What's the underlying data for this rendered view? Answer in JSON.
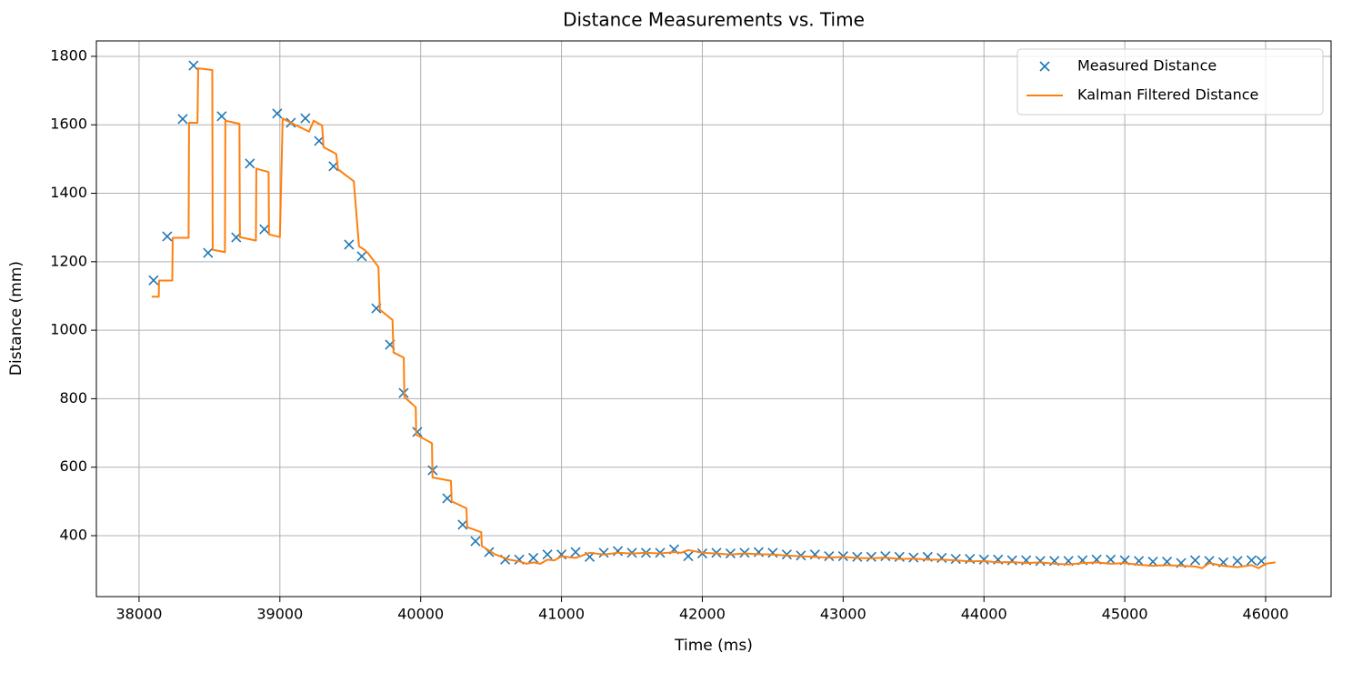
{
  "chart_data": {
    "type": "line",
    "title": "Distance Measurements vs. Time",
    "x_label": "Time (ms)",
    "y_label": "Distance (mm)",
    "xlim": [
      37697,
      46465
    ],
    "ylim": [
      222,
      1845
    ],
    "xticks": [
      38000,
      39000,
      40000,
      41000,
      42000,
      43000,
      44000,
      45000,
      46000
    ],
    "yticks": [
      400,
      600,
      800,
      1000,
      1200,
      1400,
      1600,
      1800
    ],
    "grid": true,
    "legend": "upper right",
    "series": [
      {
        "name": "Measured Distance",
        "color": "#1f77b4",
        "marker": "x",
        "x": [
          38103,
          38200,
          38310,
          38387,
          38490,
          38587,
          38690,
          38787,
          38890,
          38981,
          39078,
          39181,
          39278,
          39381,
          39491,
          39582,
          39685,
          39782,
          39879,
          39976,
          40085,
          40189,
          40298,
          40389,
          40486,
          40600,
          40700,
          40800,
          40900,
          41000,
          41100,
          41200,
          41300,
          41400,
          41500,
          41600,
          41700,
          41800,
          41900,
          42000,
          42100,
          42200,
          42300,
          42400,
          42500,
          42600,
          42700,
          42800,
          42900,
          43000,
          43100,
          43200,
          43300,
          43400,
          43500,
          43600,
          43700,
          43800,
          43900,
          44000,
          44100,
          44200,
          44300,
          44400,
          44500,
          44600,
          44700,
          44800,
          44900,
          45000,
          45100,
          45200,
          45300,
          45400,
          45500,
          45600,
          45700,
          45800,
          45900,
          45970
        ],
        "values": [
          1146,
          1274,
          1617,
          1773,
          1226,
          1625,
          1271,
          1487,
          1295,
          1633,
          1606,
          1619,
          1553,
          1479,
          1250,
          1216,
          1064,
          958,
          817,
          703,
          591,
          509,
          432,
          384,
          352,
          330,
          330,
          335,
          345,
          345,
          352,
          338,
          350,
          355,
          350,
          350,
          350,
          360,
          340,
          348,
          350,
          348,
          350,
          352,
          350,
          345,
          342,
          345,
          340,
          340,
          338,
          338,
          340,
          338,
          336,
          338,
          335,
          332,
          332,
          330,
          330,
          328,
          328,
          326,
          326,
          326,
          328,
          330,
          330,
          328,
          326,
          324,
          324,
          320,
          328,
          326,
          322,
          326,
          328,
          326
        ]
      },
      {
        "name": "Kalman Filtered Distance",
        "color": "#ff7f0e",
        "linestyle": "-",
        "x": [
          38090,
          38140,
          38142,
          38236,
          38239,
          38352,
          38355,
          38415,
          38420,
          38520,
          38523,
          38610,
          38613,
          38713,
          38716,
          38830,
          38833,
          38920,
          38923,
          39000,
          39020,
          39207,
          39240,
          39300,
          39310,
          39400,
          39413,
          39525,
          39562,
          39600,
          39626,
          39700,
          39710,
          39800,
          39807,
          39880,
          39884,
          39965,
          39968,
          40080,
          40084,
          40215,
          40220,
          40325,
          40330,
          40430,
          40434,
          40530,
          40627,
          40700,
          40750,
          40800,
          40850,
          40900,
          40950,
          41000,
          41100,
          41200,
          41300,
          41400,
          41500,
          41600,
          41700,
          41800,
          41850,
          41900,
          42000,
          42100,
          42200,
          42300,
          42400,
          42500,
          42600,
          42700,
          42800,
          42900,
          43000,
          43100,
          43200,
          43300,
          43400,
          43500,
          43600,
          43700,
          43800,
          43900,
          44000,
          44100,
          44200,
          44300,
          44400,
          44500,
          44600,
          44700,
          44800,
          44900,
          45000,
          45100,
          45200,
          45300,
          45400,
          45500,
          45550,
          45600,
          45700,
          45800,
          45900,
          45950,
          46000,
          46070
        ],
        "values": [
          1098,
          1098,
          1145,
          1145,
          1270,
          1270,
          1606,
          1606,
          1765,
          1760,
          1235,
          1228,
          1612,
          1603,
          1272,
          1262,
          1472,
          1462,
          1280,
          1272,
          1618,
          1580,
          1612,
          1598,
          1535,
          1515,
          1470,
          1435,
          1245,
          1235,
          1225,
          1185,
          1060,
          1030,
          935,
          920,
          805,
          775,
          695,
          670,
          570,
          560,
          500,
          480,
          425,
          410,
          370,
          345,
          330,
          325,
          318,
          322,
          318,
          330,
          328,
          340,
          335,
          350,
          345,
          350,
          348,
          350,
          348,
          352,
          350,
          358,
          350,
          348,
          345,
          348,
          346,
          345,
          342,
          340,
          338,
          336,
          338,
          335,
          334,
          336,
          332,
          333,
          330,
          330,
          328,
          325,
          326,
          322,
          323,
          320,
          322,
          318,
          316,
          320,
          322,
          318,
          320,
          315,
          312,
          314,
          312,
          310,
          305,
          320,
          312,
          308,
          314,
          305,
          318,
          322
        ]
      }
    ]
  }
}
